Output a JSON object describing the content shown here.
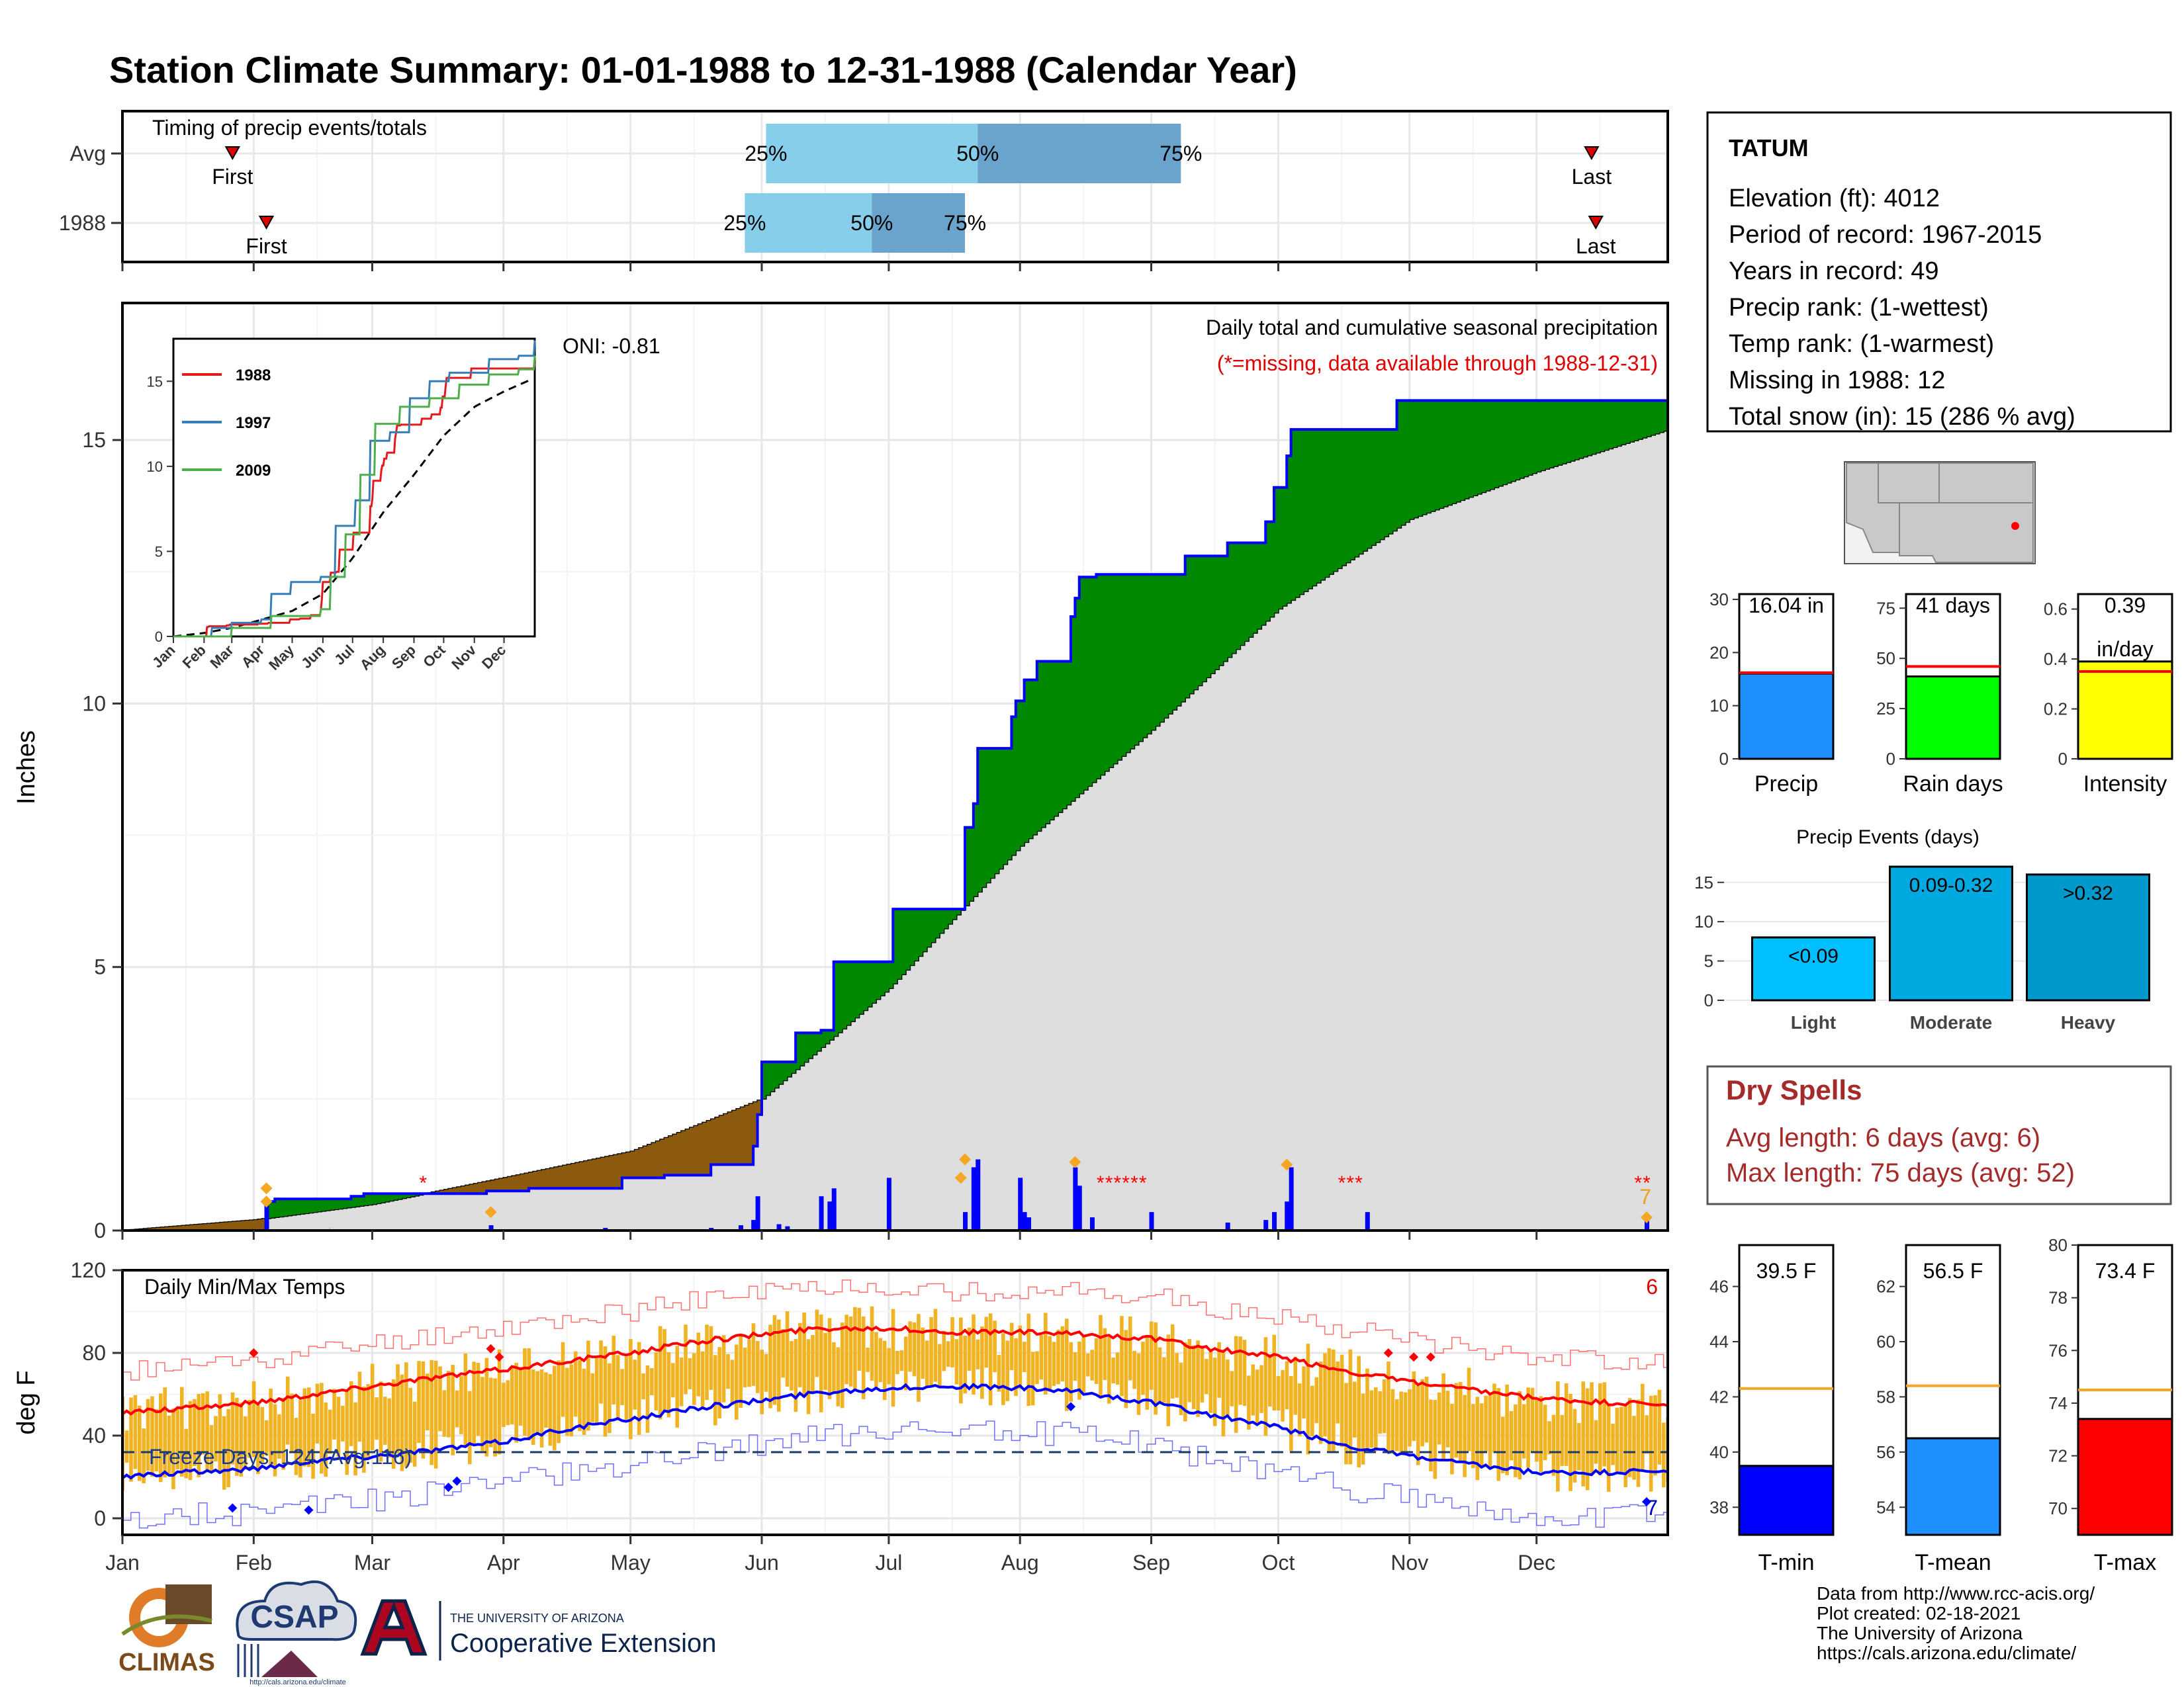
{
  "page": {
    "title": "Station Climate Summary: 01-01-1988 to 12-31-1988 (Calendar Year)"
  },
  "colors": {
    "title": "#0a0a7a",
    "cum_year": "#0000ff",
    "surplus": "#008800",
    "deficit": "#8b5a0f",
    "normal_fill": "#dedede",
    "bar_q_light": "#87ceeb",
    "bar_q_dark": "#6aa3cb",
    "temp_bar": "#f0b323",
    "tmax_line": "#ff0000",
    "tmin_line": "#0000ff",
    "dry_spell": "#a52a2a"
  },
  "timing_panel": {
    "title": "Timing of precip events/totals",
    "rows": [
      {
        "label": "Avg",
        "first_label": "First",
        "last_label": "Last",
        "first_day": 27,
        "last_day": 348,
        "q25": 153,
        "q50": 203,
        "q75": 251,
        "q25_label": "25%",
        "q50_label": "50%",
        "q75_label": "75%"
      },
      {
        "label": "1988",
        "first_label": "First",
        "last_label": "Last",
        "first_day": 35,
        "last_day": 349,
        "q25": 148,
        "q50": 178,
        "q75": 200,
        "q25_label": "25%",
        "q50_label": "50%",
        "q75_label": "75%"
      }
    ]
  },
  "precip_panel": {
    "ylabel": "Inches",
    "oni": "ONI: -0.81",
    "header": "Daily total and cumulative seasonal precipitation",
    "missing_note": "(*=missing, data available through 1988-12-31)",
    "missing_count": "7",
    "yticks": [
      "0",
      "5",
      "10",
      "15"
    ]
  },
  "inset": {
    "legend": [
      {
        "name": "1988",
        "color": "#e41a1c"
      },
      {
        "name": "1997",
        "color": "#377eb8"
      },
      {
        "name": "2009",
        "color": "#4daf4a"
      }
    ],
    "yticks": [
      "0",
      "5",
      "10",
      "15"
    ],
    "xticks": [
      "Jan",
      "Feb",
      "Mar",
      "Apr",
      "May",
      "Jun",
      "Jul",
      "Aug",
      "Sep",
      "Oct",
      "Nov",
      "Dec"
    ]
  },
  "temp_panel": {
    "title": "Daily Min/Max Temps",
    "ylabel": "deg F",
    "freeze": "Freeze Days: 124 (Avg:116)",
    "count_top": "6",
    "count_bottom": "7",
    "yticks": [
      "0",
      "40",
      "80",
      "120"
    ]
  },
  "months": [
    "Jan",
    "Feb",
    "Mar",
    "Apr",
    "May",
    "Jun",
    "Jul",
    "Aug",
    "Sep",
    "Oct",
    "Nov",
    "Dec"
  ],
  "station": {
    "name": "TATUM",
    "lines": [
      "Elevation (ft): 4012",
      "Period of record: 1967-2015",
      "Years in record: 49",
      "Precip rank:  (1-wettest)",
      "Temp rank:  (1-warmest)",
      "Missing in 1988: 12",
      "Total snow (in): 15 (286 % avg)"
    ]
  },
  "summary_bars": [
    {
      "label": "Precip",
      "value_label": "16.04 in",
      "value": 16.04,
      "avg": 16.2,
      "ymax": 31,
      "yticks": [
        0,
        10,
        20,
        30
      ],
      "color": "#1e90ff"
    },
    {
      "label": "Rain days",
      "value_label": "41 days",
      "value": 41,
      "avg": 46,
      "ymax": 82,
      "yticks": [
        0,
        25,
        50,
        75
      ],
      "color": "#00ff00"
    },
    {
      "label": "Intensity",
      "value_label": "0.39",
      "value_label2": "in/day",
      "value": 0.39,
      "avg": 0.35,
      "ymax": 0.66,
      "yticks": [
        0.0,
        0.2,
        0.4,
        0.6
      ],
      "color": "#ffff00"
    }
  ],
  "precip_events": {
    "title": "Precip Events (days)",
    "yticks": [
      0,
      5,
      10,
      15
    ],
    "ymax": 17,
    "bars": [
      {
        "label": "Light",
        "value_label": "<0.09",
        "value": 8,
        "color": "#00bfff"
      },
      {
        "label": "Moderate",
        "value_label": "0.09-0.32",
        "value": 17,
        "color": "#00aae0"
      },
      {
        "label": "Heavy",
        "value_label": ">0.32",
        "value": 16,
        "color": "#0099cc"
      }
    ]
  },
  "dry_spells": {
    "title": "Dry Spells",
    "avg": "Avg length: 6 days (avg: 6)",
    "max": "Max length: 75 days (avg: 52)"
  },
  "temp_bars": [
    {
      "label": "T-min",
      "value_label": "39.5 F",
      "value": 39.5,
      "avg": 42.3,
      "ymin": 37,
      "ymax": 47.5,
      "yticks": [
        38,
        40,
        42,
        44,
        46
      ],
      "color": "#0000ff"
    },
    {
      "label": "T-mean",
      "value_label": "56.5 F",
      "value": 56.5,
      "avg": 58.4,
      "ymin": 53,
      "ymax": 63.5,
      "yticks": [
        54,
        56,
        58,
        60,
        62
      ],
      "color": "#1e90ff"
    },
    {
      "label": "T-max",
      "value_label": "73.4 F",
      "value": 73.4,
      "avg": 74.5,
      "ymin": 69,
      "ymax": 80,
      "yticks": [
        70,
        72,
        74,
        76,
        78,
        80
      ],
      "color": "#ff0000"
    }
  ],
  "footer": {
    "lines": [
      "Data from http://www.rcc-acis.org/",
      "Plot created: 02-18-2021",
      "The University of Arizona",
      "https://cals.arizona.edu/climate/"
    ],
    "logos": {
      "climas": "CLIMAS",
      "csap": "CSAP",
      "csap_url": "http://cals.arizona.edu/climate",
      "ua_small": "THE UNIVERSITY OF ARIZONA",
      "ua_big": "Cooperative Extension"
    }
  },
  "chart_data": {
    "type": "area",
    "title": "Station Climate Summary: 01-01-1988 to 12-31-1988 (Calendar Year)",
    "ylabel": "Inches",
    "ylim": [
      0,
      17.6
    ],
    "cumulative_1988": [
      [
        1,
        0
      ],
      [
        34,
        0.0
      ],
      [
        35,
        0.55
      ],
      [
        37,
        0.6
      ],
      [
        55,
        0.65
      ],
      [
        58,
        0.7
      ],
      [
        87,
        0.75
      ],
      [
        97,
        0.8
      ],
      [
        119,
        1.0
      ],
      [
        129,
        1.05
      ],
      [
        140,
        1.25
      ],
      [
        150,
        1.6
      ],
      [
        151,
        2.2
      ],
      [
        152,
        3.2
      ],
      [
        160,
        3.75
      ],
      [
        166,
        3.8
      ],
      [
        169,
        5.1
      ],
      [
        182,
        5.1
      ],
      [
        183,
        6.1
      ],
      [
        199,
        6.1
      ],
      [
        200,
        7.65
      ],
      [
        202,
        8.1
      ],
      [
        203,
        9.15
      ],
      [
        211,
        9.75
      ],
      [
        212,
        10.05
      ],
      [
        214,
        10.45
      ],
      [
        217,
        10.8
      ],
      [
        224,
        10.8
      ],
      [
        225,
        11.65
      ],
      [
        226,
        12.0
      ],
      [
        227,
        12.4
      ],
      [
        231,
        12.45
      ],
      [
        248,
        12.45
      ],
      [
        252,
        12.8
      ],
      [
        262,
        13.05
      ],
      [
        271,
        13.45
      ],
      [
        273,
        14.1
      ],
      [
        276,
        14.7
      ],
      [
        277,
        15.2
      ],
      [
        301,
        15.2
      ],
      [
        302,
        15.75
      ],
      [
        365,
        15.75
      ],
      [
        366,
        16.04
      ]
    ],
    "normal_cumulative": [
      [
        1,
        0
      ],
      [
        32,
        0.2
      ],
      [
        60,
        0.5
      ],
      [
        91,
        1.0
      ],
      [
        121,
        1.5
      ],
      [
        152,
        2.5
      ],
      [
        182,
        4.6
      ],
      [
        213,
        7.3
      ],
      [
        244,
        9.5
      ],
      [
        274,
        11.8
      ],
      [
        305,
        13.5
      ],
      [
        335,
        14.4
      ],
      [
        366,
        15.2
      ]
    ],
    "daily_precip_1988": [
      [
        35,
        0.55
      ],
      [
        88,
        0.1
      ],
      [
        115,
        0.05
      ],
      [
        121,
        0.02
      ],
      [
        140,
        0.05
      ],
      [
        147,
        0.1
      ],
      [
        150,
        0.2
      ],
      [
        151,
        0.65
      ],
      [
        156,
        0.12
      ],
      [
        158,
        0.08
      ],
      [
        166,
        0.65
      ],
      [
        168,
        0.55
      ],
      [
        169,
        0.8
      ],
      [
        182,
        1.0
      ],
      [
        200,
        0.35
      ],
      [
        202,
        1.2
      ],
      [
        203,
        1.35
      ],
      [
        213,
        1.0
      ],
      [
        214,
        0.35
      ],
      [
        215,
        0.25
      ],
      [
        226,
        1.2
      ],
      [
        227,
        0.85
      ],
      [
        230,
        0.25
      ],
      [
        244,
        0.35
      ],
      [
        262,
        0.15
      ],
      [
        271,
        0.2
      ],
      [
        273,
        0.35
      ],
      [
        276,
        0.55
      ],
      [
        277,
        1.2
      ],
      [
        295,
        0.35
      ],
      [
        361,
        0.3
      ]
    ],
    "temp_normal_max": [
      [
        1,
        51
      ],
      [
        15,
        53
      ],
      [
        32,
        56
      ],
      [
        46,
        60
      ],
      [
        60,
        64
      ],
      [
        74,
        68
      ],
      [
        91,
        72
      ],
      [
        105,
        76
      ],
      [
        121,
        80
      ],
      [
        135,
        85
      ],
      [
        152,
        89
      ],
      [
        166,
        92
      ],
      [
        182,
        92
      ],
      [
        196,
        90
      ],
      [
        213,
        90
      ],
      [
        227,
        89
      ],
      [
        244,
        87
      ],
      [
        258,
        82
      ],
      [
        274,
        78
      ],
      [
        288,
        72
      ],
      [
        305,
        66
      ],
      [
        319,
        62
      ],
      [
        335,
        58
      ],
      [
        350,
        56
      ],
      [
        366,
        55
      ]
    ],
    "temp_normal_min": [
      [
        1,
        20
      ],
      [
        15,
        22
      ],
      [
        32,
        24
      ],
      [
        46,
        28
      ],
      [
        60,
        30
      ],
      [
        74,
        33
      ],
      [
        91,
        37
      ],
      [
        105,
        43
      ],
      [
        121,
        48
      ],
      [
        135,
        53
      ],
      [
        152,
        57
      ],
      [
        166,
        61
      ],
      [
        182,
        63
      ],
      [
        196,
        64
      ],
      [
        213,
        63
      ],
      [
        227,
        61
      ],
      [
        244,
        56
      ],
      [
        258,
        50
      ],
      [
        274,
        44
      ],
      [
        288,
        36
      ],
      [
        305,
        30
      ],
      [
        319,
        26
      ],
      [
        335,
        22
      ],
      [
        350,
        22
      ],
      [
        366,
        23
      ]
    ],
    "freeze_threshold_f": 32,
    "temp_ylim": [
      -8,
      120
    ]
  }
}
